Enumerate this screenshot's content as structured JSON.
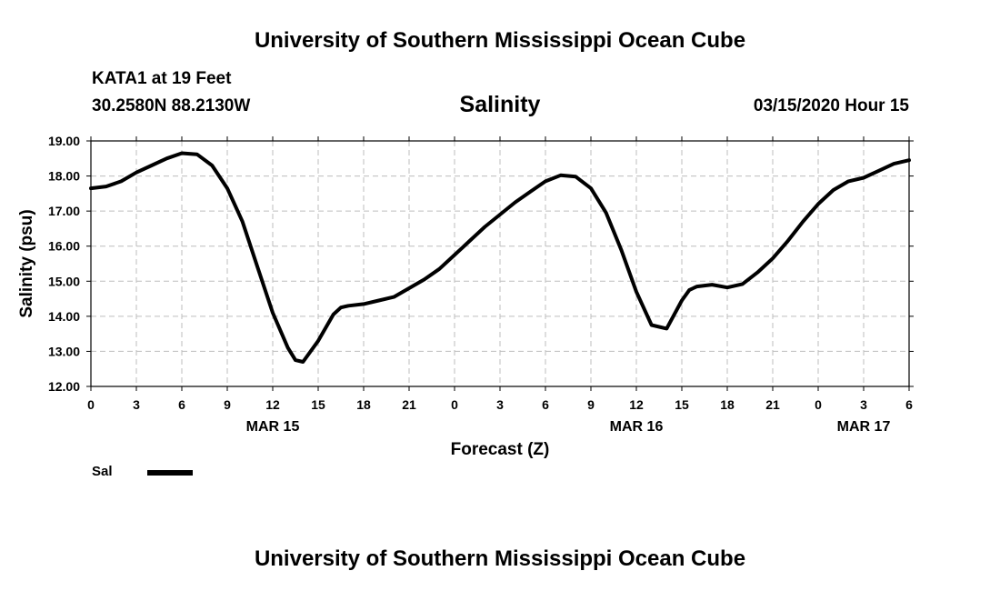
{
  "header": {
    "title_top": "University of Southern Mississippi Ocean Cube",
    "title_bottom": "University of Southern Mississippi Ocean Cube",
    "station": "KATA1 at 19 Feet",
    "location": "30.2580N 88.2130W",
    "plot_title": "Salinity",
    "timestamp": "03/15/2020 Hour 15"
  },
  "legend": {
    "label": "Sal"
  },
  "chart_data": {
    "type": "line",
    "title": "Salinity",
    "xlabel": "Forecast (Z)",
    "ylabel": "Salinity (psu)",
    "x_unit": "hours from 00Z MAR 15",
    "xlim": [
      0,
      54
    ],
    "ylim": [
      12.0,
      19.0
    ],
    "grid": true,
    "y_ticks": [
      "12.00",
      "13.00",
      "14.00",
      "15.00",
      "16.00",
      "17.00",
      "18.00",
      "19.00"
    ],
    "x_ticks": [
      "0",
      "3",
      "6",
      "9",
      "12",
      "15",
      "18",
      "21",
      "0",
      "3",
      "6",
      "9",
      "12",
      "15",
      "18",
      "21",
      "0",
      "3",
      "6"
    ],
    "date_labels": [
      {
        "label": "MAR 15",
        "hour": 12
      },
      {
        "label": "MAR 16",
        "hour": 36
      },
      {
        "label": "MAR 17",
        "hour": 51
      }
    ],
    "series": [
      {
        "name": "Sal",
        "color": "#000000",
        "x": [
          0,
          1,
          2,
          3,
          4,
          5,
          6,
          7,
          8,
          9,
          10,
          11,
          12,
          13,
          13.5,
          14,
          15,
          16,
          16.5,
          17,
          18,
          19,
          20,
          21,
          22,
          23,
          24,
          25,
          26,
          27,
          28,
          29,
          30,
          31,
          32,
          33,
          34,
          35,
          36,
          37,
          38,
          39,
          39.5,
          40,
          41,
          42,
          43,
          44,
          45,
          46,
          47,
          48,
          49,
          50,
          51,
          52,
          53,
          54
        ],
        "y": [
          17.65,
          17.7,
          17.85,
          18.1,
          18.3,
          18.5,
          18.65,
          18.62,
          18.3,
          17.65,
          16.7,
          15.4,
          14.1,
          13.1,
          12.75,
          12.7,
          13.3,
          14.05,
          14.25,
          14.3,
          14.35,
          14.45,
          14.55,
          14.8,
          15.05,
          15.35,
          15.75,
          16.15,
          16.55,
          16.9,
          17.25,
          17.55,
          17.85,
          18.02,
          17.98,
          17.65,
          16.95,
          15.9,
          14.7,
          13.75,
          13.65,
          14.45,
          14.75,
          14.85,
          14.9,
          14.82,
          14.92,
          15.25,
          15.65,
          16.15,
          16.7,
          17.2,
          17.6,
          17.85,
          17.95,
          18.15,
          18.35,
          18.45
        ]
      }
    ]
  }
}
